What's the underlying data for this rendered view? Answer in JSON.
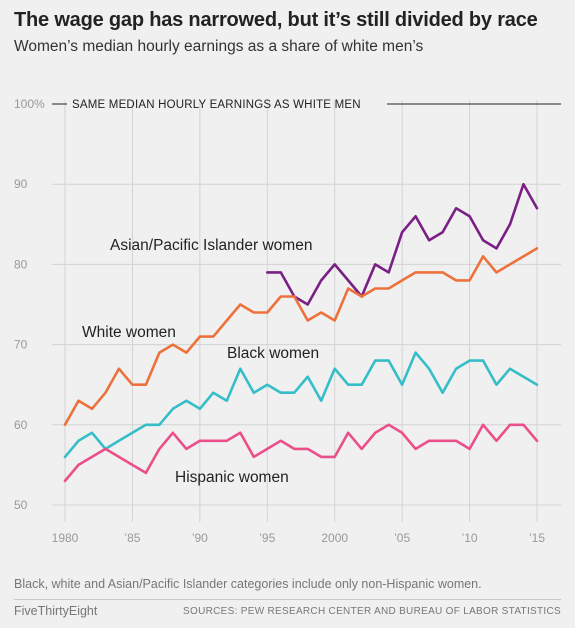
{
  "header": {
    "title": "The wage gap has narrowed, but it’s still divided by race",
    "subtitle": "Women’s median hourly earnings as a share of white men’s"
  },
  "footer": {
    "note": "Black, white and Asian/Pacific Islander categories include only non-Hispanic women.",
    "brand": "FiveThirtyEight",
    "source": "SOURCES: PEW RESEARCH CENTER AND BUREAU OF LABOR STATISTICS"
  },
  "chart_data": {
    "type": "line",
    "ylim": [
      50,
      100
    ],
    "xlim": [
      1980,
      2015
    ],
    "grid": true,
    "y_ticks": [
      50,
      60,
      70,
      80,
      90,
      100
    ],
    "y_tick_labels": [
      "50",
      "60",
      "70",
      "80",
      "90",
      "100%"
    ],
    "x_ticks": [
      1980,
      1985,
      1990,
      1995,
      2000,
      2005,
      2010,
      2015
    ],
    "x_tick_labels": [
      "1980",
      "’85",
      "’90",
      "’95",
      "2000",
      "’05",
      "’10",
      "’15"
    ],
    "reference_line": {
      "value": 100,
      "label": "SAME MEDIAN HOURLY EARNINGS AS WHITE MEN"
    },
    "colors": {
      "asian": "#7a1f85",
      "white": "#ed713a",
      "black": "#35bdc8",
      "hispanic": "#eb4f89",
      "grid": "#d3d3d3",
      "reference": "#222222",
      "axis_text": "#999999"
    },
    "series": [
      {
        "key": "asian",
        "name": "Asian/Pacific Islander women",
        "x": [
          1995,
          1996,
          1997,
          1998,
          1999,
          2000,
          2001,
          2002,
          2003,
          2004,
          2005,
          2006,
          2007,
          2008,
          2009,
          2010,
          2011,
          2012,
          2013,
          2014,
          2015
        ],
        "values": [
          79,
          79,
          76,
          75,
          78,
          80,
          78,
          76,
          80,
          79,
          84,
          86,
          83,
          84,
          87,
          86,
          83,
          82,
          85,
          90,
          87
        ]
      },
      {
        "key": "white",
        "name": "White women",
        "x": [
          1980,
          1981,
          1982,
          1983,
          1984,
          1985,
          1986,
          1987,
          1988,
          1989,
          1990,
          1991,
          1992,
          1993,
          1994,
          1995,
          1996,
          1997,
          1998,
          1999,
          2000,
          2001,
          2002,
          2003,
          2004,
          2005,
          2006,
          2007,
          2008,
          2009,
          2010,
          2011,
          2012,
          2013,
          2014,
          2015
        ],
        "values": [
          60,
          63,
          62,
          64,
          67,
          65,
          65,
          69,
          70,
          69,
          71,
          71,
          73,
          75,
          74,
          74,
          76,
          76,
          73,
          74,
          73,
          77,
          76,
          77,
          77,
          78,
          79,
          79,
          79,
          78,
          78,
          81,
          79,
          80,
          81,
          82
        ]
      },
      {
        "key": "black",
        "name": "Black women",
        "x": [
          1980,
          1981,
          1982,
          1983,
          1984,
          1985,
          1986,
          1987,
          1988,
          1989,
          1990,
          1991,
          1992,
          1993,
          1994,
          1995,
          1996,
          1997,
          1998,
          1999,
          2000,
          2001,
          2002,
          2003,
          2004,
          2005,
          2006,
          2007,
          2008,
          2009,
          2010,
          2011,
          2012,
          2013,
          2014,
          2015
        ],
        "values": [
          56,
          58,
          59,
          57,
          58,
          59,
          60,
          60,
          62,
          63,
          62,
          64,
          63,
          67,
          64,
          65,
          64,
          64,
          66,
          63,
          67,
          65,
          65,
          68,
          68,
          65,
          69,
          67,
          64,
          67,
          68,
          68,
          65,
          67,
          66,
          65
        ]
      },
      {
        "key": "hispanic",
        "name": "Hispanic women",
        "x": [
          1980,
          1981,
          1982,
          1983,
          1984,
          1985,
          1986,
          1987,
          1988,
          1989,
          1990,
          1991,
          1992,
          1993,
          1994,
          1995,
          1996,
          1997,
          1998,
          1999,
          2000,
          2001,
          2002,
          2003,
          2004,
          2005,
          2006,
          2007,
          2008,
          2009,
          2010,
          2011,
          2012,
          2013,
          2014,
          2015
        ],
        "values": [
          53,
          55,
          56,
          57,
          56,
          55,
          54,
          57,
          59,
          57,
          58,
          58,
          58,
          59,
          56,
          57,
          58,
          57,
          57,
          56,
          56,
          59,
          57,
          59,
          60,
          59,
          57,
          58,
          58,
          58,
          57,
          60,
          58,
          60,
          60,
          58
        ]
      }
    ]
  }
}
